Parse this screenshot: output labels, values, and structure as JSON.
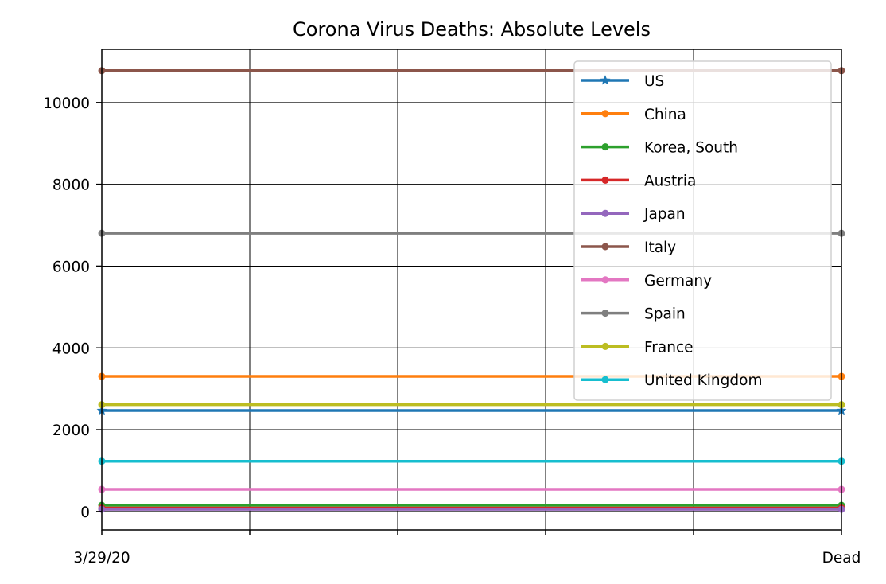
{
  "chart_data": {
    "type": "line",
    "title": "Corona Virus Deaths: Absolute Levels",
    "xlabel": "",
    "ylabel": "",
    "x": [
      "3/29/20",
      "Dead"
    ],
    "x_tick_labels": [
      "3/29/20",
      "",
      "",
      "",
      "",
      "Dead"
    ],
    "y_ticks": [
      0,
      2000,
      4000,
      6000,
      8000,
      10000
    ],
    "ylim": [
      -450,
      11300
    ],
    "grid": true,
    "legend_position": "top-right",
    "series": [
      {
        "name": "US",
        "color": "#1f77b4",
        "marker": "star",
        "values": [
          2467,
          2467
        ]
      },
      {
        "name": "China",
        "color": "#ff7f0e",
        "marker": "dot",
        "values": [
          3304,
          3304
        ]
      },
      {
        "name": "Korea, South",
        "color": "#2ca02c",
        "marker": "dot",
        "values": [
          152,
          152
        ]
      },
      {
        "name": "Austria",
        "color": "#d62728",
        "marker": "dot",
        "values": [
          86,
          86
        ]
      },
      {
        "name": "Japan",
        "color": "#9467bd",
        "marker": "dot",
        "values": [
          54,
          54
        ]
      },
      {
        "name": "Italy",
        "color": "#8c564b",
        "marker": "dot",
        "values": [
          10779,
          10779
        ]
      },
      {
        "name": "Germany",
        "color": "#e377c2",
        "marker": "dot",
        "values": [
          541,
          541
        ]
      },
      {
        "name": "Spain",
        "color": "#7f7f7f",
        "marker": "dot",
        "values": [
          6803,
          6803
        ]
      },
      {
        "name": "France",
        "color": "#bcbd22",
        "marker": "dot",
        "values": [
          2611,
          2611
        ]
      },
      {
        "name": "United Kingdom",
        "color": "#17becf",
        "marker": "dot",
        "values": [
          1228,
          1228
        ]
      }
    ]
  }
}
